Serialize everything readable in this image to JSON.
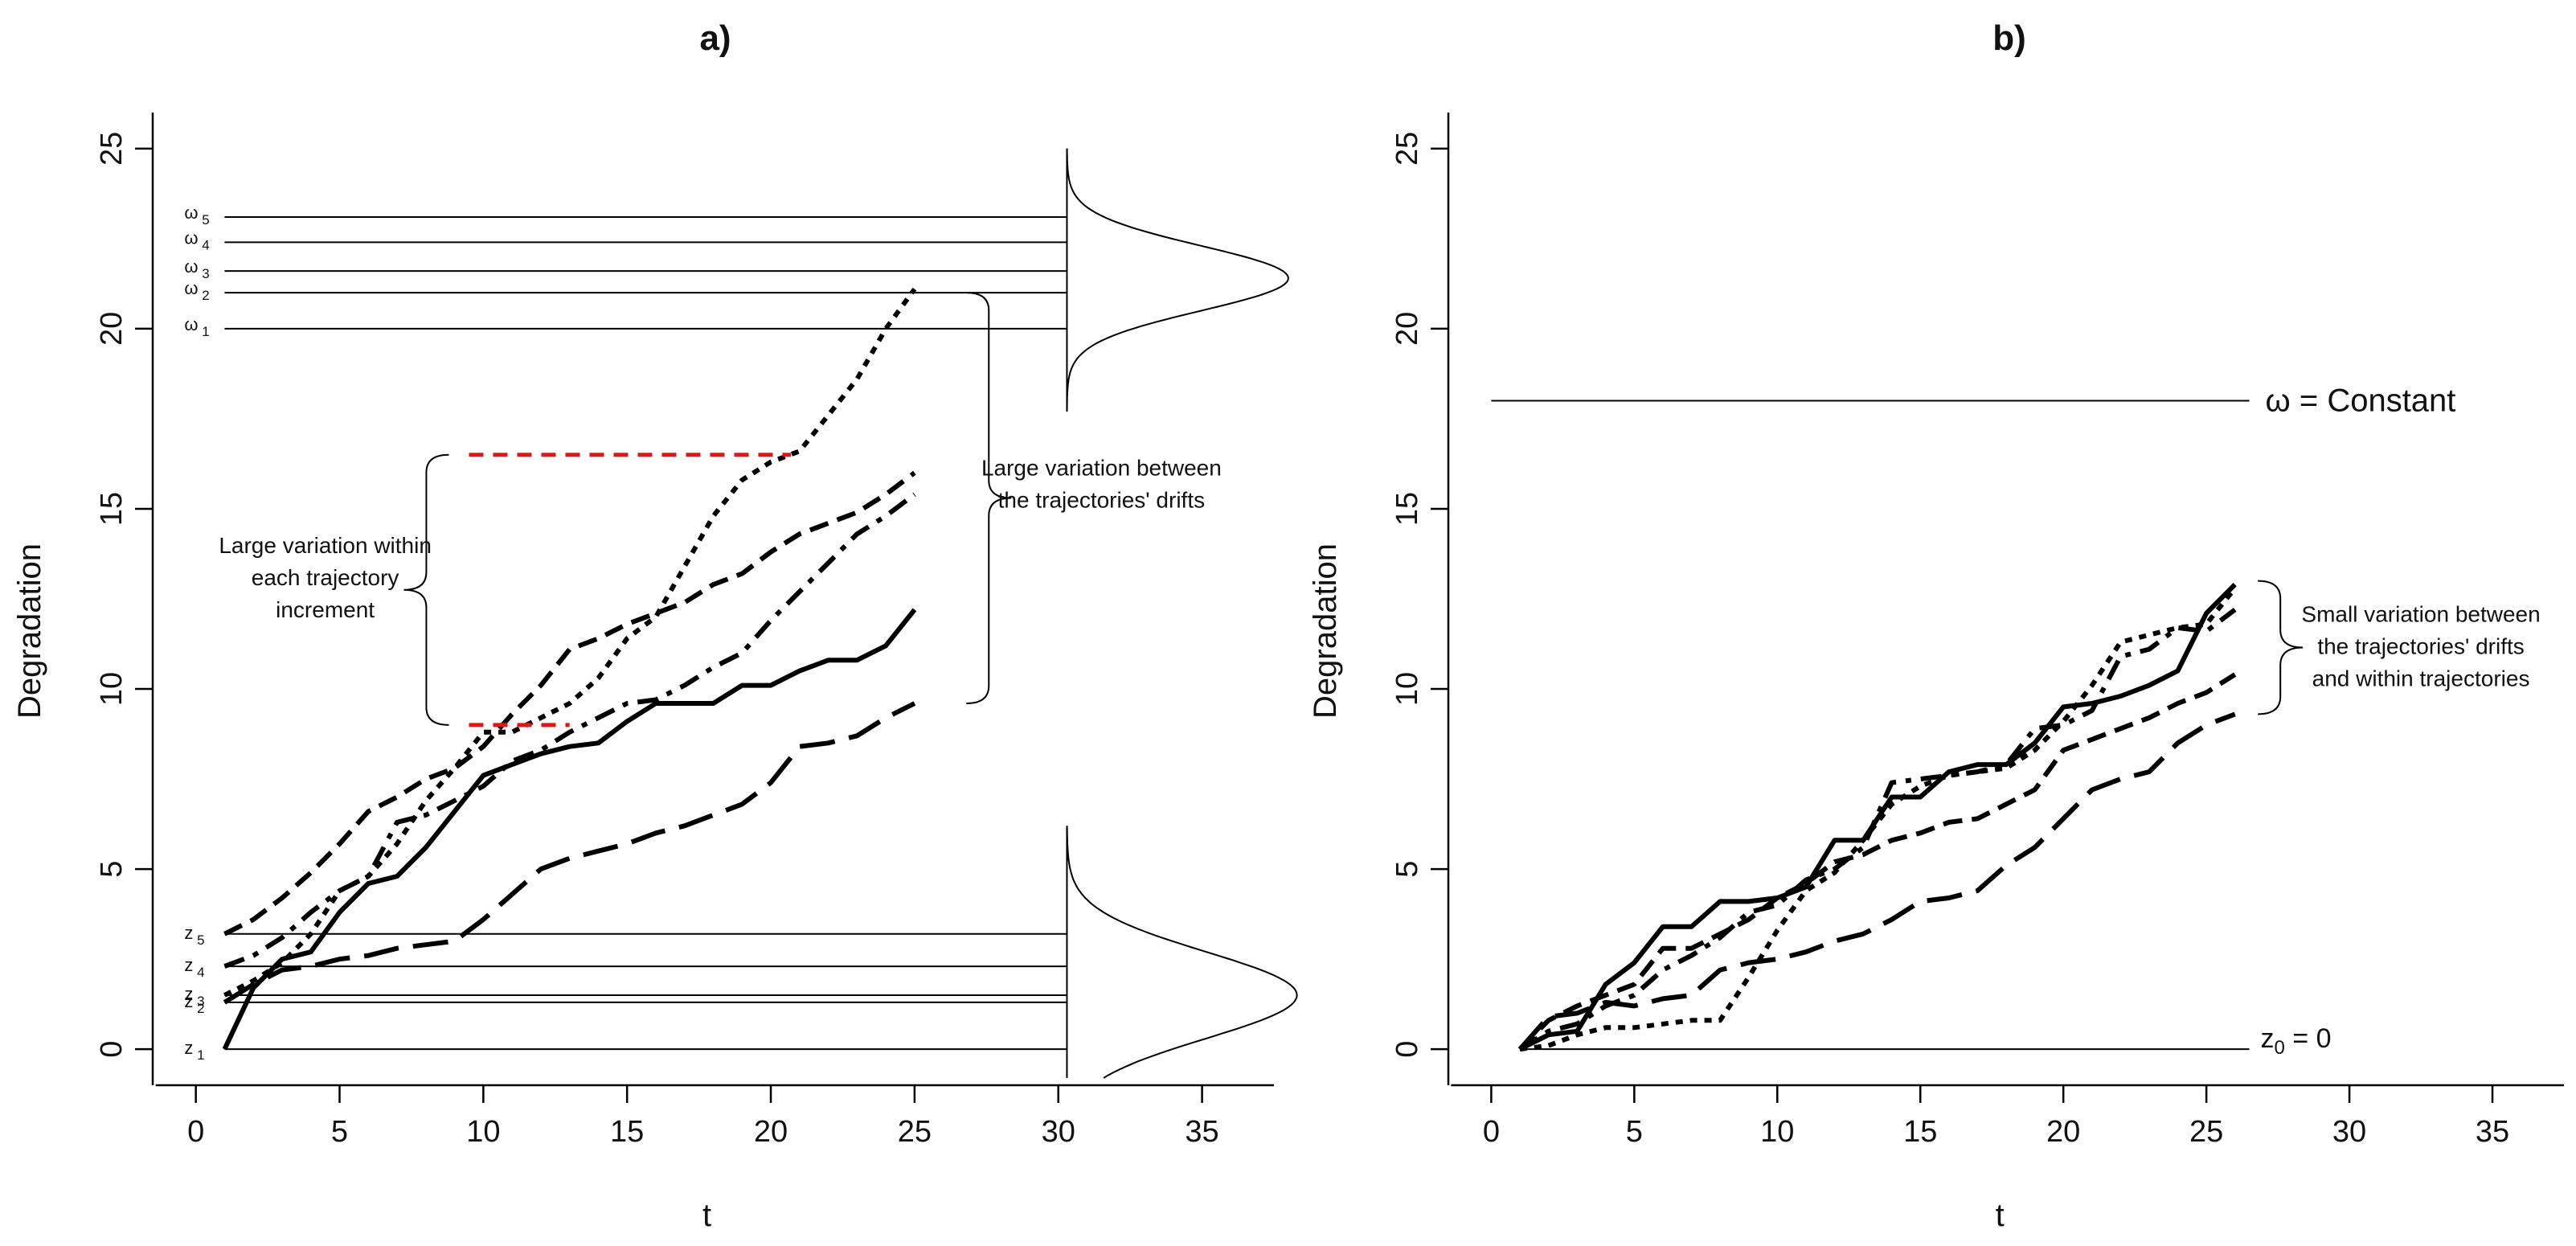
{
  "chart_data": [
    {
      "id": "a",
      "type": "line",
      "title": "a)",
      "xlabel": "t",
      "ylabel": "Degradation",
      "xlim": [
        -1.5,
        37.5
      ],
      "ylim": [
        -1,
        26
      ],
      "xticks": [
        0,
        5,
        10,
        15,
        20,
        25,
        30,
        35
      ],
      "yticks": [
        0,
        5,
        10,
        15,
        20,
        25
      ],
      "thresholds": [
        {
          "label": "ω",
          "sub": "1",
          "y": 20.0
        },
        {
          "label": "ω",
          "sub": "2",
          "y": 21.0
        },
        {
          "label": "ω",
          "sub": "3",
          "y": 21.6
        },
        {
          "label": "ω",
          "sub": "4",
          "y": 22.4
        },
        {
          "label": "ω",
          "sub": "5",
          "y": 23.1
        }
      ],
      "threshold_x_end": 30.3,
      "initial_levels": [
        {
          "label": "z",
          "sub": "1",
          "y": 0.0
        },
        {
          "label": "z",
          "sub": "2",
          "y": 1.3
        },
        {
          "label": "z",
          "sub": "3",
          "y": 1.5
        },
        {
          "label": "z",
          "sub": "4",
          "y": 2.3
        },
        {
          "label": "z",
          "sub": "5",
          "y": 3.2
        }
      ],
      "initial_x_end": 30.3,
      "upper_density": {
        "x0": 30.3,
        "y_center": 21.4,
        "sd": 0.9,
        "height": 7.7,
        "y_range": [
          17.7,
          25.0
        ]
      },
      "lower_density": {
        "x0": 30.3,
        "y_center": 1.5,
        "sd": 1.2,
        "height": 8.0,
        "y_range": [
          -0.8,
          6.2
        ]
      },
      "series": [
        {
          "name": "solid",
          "dash": "solid",
          "x": [
            1,
            2,
            3,
            4,
            5,
            6,
            7,
            8,
            9,
            10,
            11,
            12,
            13,
            14,
            15,
            16,
            17,
            18,
            19,
            20,
            21,
            22,
            23,
            24,
            25
          ],
          "y": [
            0,
            1.7,
            2.5,
            2.7,
            3.8,
            4.6,
            4.8,
            5.6,
            6.6,
            7.6,
            7.9,
            8.2,
            8.4,
            8.5,
            9.1,
            9.6,
            9.6,
            9.6,
            10.1,
            10.1,
            10.5,
            10.8,
            10.8,
            11.2,
            12.2
          ]
        },
        {
          "name": "short-dash",
          "dash": "short",
          "x": [
            1,
            2,
            3,
            4,
            5,
            6,
            7,
            8,
            9,
            10,
            11,
            12,
            13,
            14,
            15,
            16,
            17,
            18,
            19,
            20,
            21,
            22,
            23,
            24,
            25
          ],
          "y": [
            1.5,
            1.9,
            2.4,
            3.2,
            4.4,
            4.8,
            5.7,
            6.9,
            7.8,
            8.8,
            8.8,
            9.2,
            9.6,
            10.3,
            11.4,
            12.0,
            13.4,
            14.8,
            15.8,
            16.3,
            16.6,
            17.6,
            18.6,
            20.0,
            21.1
          ]
        },
        {
          "name": "dash-dot",
          "dash": "dashdot",
          "x": [
            1,
            2,
            3,
            4,
            5,
            6,
            7,
            8,
            9,
            10,
            11,
            12,
            13,
            14,
            15,
            16,
            17,
            18,
            19,
            20,
            21,
            22,
            23,
            24,
            25
          ],
          "y": [
            2.3,
            2.6,
            3.1,
            3.8,
            4.4,
            4.8,
            6.3,
            6.5,
            6.9,
            7.3,
            8.0,
            8.3,
            8.8,
            9.2,
            9.6,
            9.7,
            10.1,
            10.6,
            11.0,
            11.9,
            12.7,
            13.5,
            14.3,
            14.8,
            15.4
          ]
        },
        {
          "name": "medium-dash",
          "dash": "medium",
          "x": [
            1,
            2,
            3,
            4,
            5,
            6,
            7,
            8,
            9,
            10,
            11,
            12,
            13,
            14,
            15,
            16,
            17,
            18,
            19,
            20,
            21,
            22,
            23,
            24,
            25
          ],
          "y": [
            3.2,
            3.6,
            4.2,
            4.9,
            5.7,
            6.6,
            7.0,
            7.5,
            7.8,
            8.4,
            9.3,
            10.1,
            11.1,
            11.4,
            11.8,
            12.1,
            12.4,
            12.9,
            13.2,
            13.8,
            14.3,
            14.6,
            14.9,
            15.4,
            16.0
          ]
        },
        {
          "name": "long-dash",
          "dash": "long",
          "x": [
            1,
            2,
            3,
            4,
            5,
            6,
            7,
            8,
            9,
            10,
            11,
            12,
            13,
            14,
            15,
            16,
            17,
            18,
            19,
            20,
            21,
            22,
            23,
            24,
            25
          ],
          "y": [
            1.3,
            1.8,
            2.2,
            2.3,
            2.5,
            2.6,
            2.8,
            2.9,
            3.0,
            3.6,
            4.3,
            5.0,
            5.3,
            5.5,
            5.7,
            6.0,
            6.2,
            6.5,
            6.8,
            7.4,
            8.4,
            8.5,
            8.7,
            9.2,
            9.6
          ]
        }
      ],
      "red_lines": [
        {
          "x0": 9.5,
          "x1": 20.7,
          "y": 16.5
        },
        {
          "x0": 9.5,
          "x1": 13.0,
          "y": 9.0
        }
      ],
      "annotations": [
        {
          "id": "within",
          "lines": [
            "Large variation within",
            "each trajectory",
            "increment"
          ],
          "x": 4.5,
          "y": 13.1
        },
        {
          "id": "between",
          "lines": [
            "Large variation between",
            "the trajectories' drifts"
          ],
          "x": 31.5,
          "y": 15.7
        }
      ],
      "braces": [
        {
          "id": "within-brace",
          "side": "left",
          "x": 8.8,
          "y0": 9.0,
          "y1": 16.5
        },
        {
          "id": "between-brace",
          "side": "right",
          "x": 26.8,
          "y0": 9.6,
          "y1": 21.0
        }
      ]
    },
    {
      "id": "b",
      "type": "line",
      "title": "b)",
      "xlabel": "t",
      "ylabel": "Degradation",
      "xlim": [
        -1.5,
        37.5
      ],
      "ylim": [
        -1,
        26
      ],
      "xticks": [
        0,
        5,
        10,
        15,
        20,
        25,
        30,
        35
      ],
      "yticks": [
        0,
        5,
        10,
        15,
        20,
        25
      ],
      "threshold": {
        "x0": 0,
        "x1": 26.5,
        "y": 18.0,
        "label": "ω = Constant"
      },
      "baseline": {
        "x0": 1,
        "x1": 26.5,
        "y": 0.0,
        "label_main": "z",
        "label_sub": "0",
        "label_rest": " = 0"
      },
      "series": [
        {
          "name": "solid",
          "dash": "solid",
          "x": [
            1,
            2,
            3,
            4,
            5,
            6,
            7,
            8,
            9,
            10,
            11,
            12,
            13,
            14,
            15,
            16,
            17,
            18,
            19,
            20,
            21,
            22,
            23,
            24,
            25,
            26
          ],
          "y": [
            0,
            0.4,
            0.5,
            1.8,
            2.4,
            3.4,
            3.4,
            4.1,
            4.1,
            4.2,
            4.5,
            5.8,
            5.8,
            7.0,
            7.0,
            7.7,
            7.9,
            7.9,
            8.5,
            9.5,
            9.6,
            9.8,
            10.1,
            10.5,
            12.1,
            12.9
          ]
        },
        {
          "name": "short-dash",
          "dash": "short",
          "x": [
            1,
            2,
            3,
            4,
            5,
            6,
            7,
            8,
            9,
            10,
            11,
            12,
            13,
            14,
            15,
            16,
            17,
            18,
            19,
            20,
            21,
            22,
            23,
            24,
            25,
            26
          ],
          "y": [
            0,
            0.1,
            0.4,
            0.6,
            0.6,
            0.7,
            0.8,
            0.8,
            2.0,
            3.3,
            4.4,
            4.9,
            5.8,
            6.8,
            7.3,
            7.6,
            7.7,
            7.8,
            8.3,
            9.1,
            10.1,
            11.3,
            11.5,
            11.7,
            11.8,
            12.8
          ]
        },
        {
          "name": "dash-dot",
          "dash": "dashdot",
          "x": [
            1,
            2,
            3,
            4,
            5,
            6,
            7,
            8,
            9,
            10,
            11,
            12,
            13,
            14,
            15,
            16,
            17,
            18,
            19,
            20,
            21,
            22,
            23,
            24,
            25,
            26
          ],
          "y": [
            0,
            0.5,
            0.7,
            1.2,
            1.5,
            2.2,
            2.6,
            3.1,
            3.8,
            4.0,
            4.7,
            5.0,
            5.6,
            7.4,
            7.5,
            7.6,
            7.7,
            7.9,
            8.9,
            9.0,
            9.4,
            10.9,
            11.1,
            11.7,
            11.6,
            12.2
          ]
        },
        {
          "name": "medium-dash",
          "dash": "medium",
          "x": [
            1,
            2,
            3,
            4,
            5,
            6,
            7,
            8,
            9,
            10,
            11,
            12,
            13,
            14,
            15,
            16,
            17,
            18,
            19,
            20,
            21,
            22,
            23,
            24,
            25,
            26
          ],
          "y": [
            0,
            0.8,
            1.2,
            1.5,
            1.8,
            2.8,
            2.8,
            3.2,
            3.6,
            4.2,
            4.6,
            5.2,
            5.4,
            5.8,
            6.0,
            6.3,
            6.4,
            6.8,
            7.2,
            8.3,
            8.6,
            8.9,
            9.2,
            9.6,
            9.9,
            10.4
          ]
        },
        {
          "name": "long-dash",
          "dash": "long",
          "x": [
            1,
            2,
            3,
            4,
            5,
            6,
            7,
            8,
            9,
            10,
            11,
            12,
            13,
            14,
            15,
            16,
            17,
            18,
            19,
            20,
            21,
            22,
            23,
            24,
            25,
            26
          ],
          "y": [
            0,
            0.9,
            1.0,
            1.3,
            1.2,
            1.4,
            1.5,
            2.2,
            2.4,
            2.5,
            2.7,
            3.0,
            3.2,
            3.6,
            4.1,
            4.2,
            4.4,
            5.1,
            5.6,
            6.4,
            7.2,
            7.5,
            7.7,
            8.5,
            9.0,
            9.3
          ]
        }
      ],
      "annotations": [
        {
          "id": "small",
          "lines": [
            "Small variation between",
            "the trajectories' drifts",
            "and within trajectories"
          ],
          "x": 32.5,
          "y": 11.2
        }
      ],
      "braces": [
        {
          "id": "small-brace",
          "side": "right",
          "x": 26.8,
          "y0": 9.3,
          "y1": 13.0
        }
      ]
    }
  ]
}
